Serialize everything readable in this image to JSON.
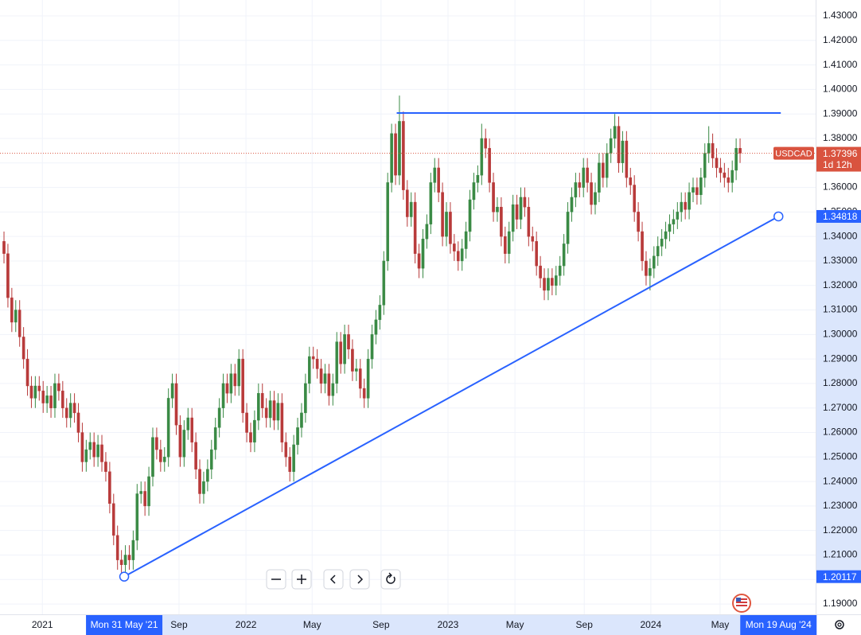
{
  "chart_data": {
    "type": "candlestick",
    "symbol": "USDCAD",
    "last_price": 1.37396,
    "countdown": "1d 12h",
    "series": [
      {
        "up_color": "#3a8a45",
        "down_color": "#b83a3a",
        "open": [
          1.338,
          1.333,
          1.315,
          1.305,
          1.31,
          1.299,
          1.29,
          1.279,
          1.274,
          1.279,
          1.277,
          1.272,
          1.275,
          1.27,
          1.28,
          1.277,
          1.27,
          1.266,
          1.272,
          1.268,
          1.26,
          1.248,
          1.253,
          1.256,
          1.25,
          1.255,
          1.248,
          1.244,
          1.231,
          1.218,
          1.208,
          1.206,
          1.21,
          1.208,
          1.216,
          1.235,
          1.236,
          1.23,
          1.242,
          1.258,
          1.253,
          1.248,
          1.25,
          1.274,
          1.28,
          1.263,
          1.25,
          1.261,
          1.266,
          1.256,
          1.245,
          1.235,
          1.24,
          1.245,
          1.253,
          1.262,
          1.27,
          1.28,
          1.276,
          1.284,
          1.279,
          1.29,
          1.268,
          1.26,
          1.256,
          1.265,
          1.276,
          1.27,
          1.266,
          1.273,
          1.265,
          1.272,
          1.256,
          1.25,
          1.244,
          1.255,
          1.262,
          1.268,
          1.28,
          1.291,
          1.29,
          1.286,
          1.28,
          1.284,
          1.275,
          1.28,
          1.297,
          1.288,
          1.3,
          1.294,
          1.285,
          1.286,
          1.278,
          1.274,
          1.29,
          1.3,
          1.306,
          1.312,
          1.33,
          1.362,
          1.382,
          1.365,
          1.387,
          1.359,
          1.348,
          1.354,
          1.333,
          1.327,
          1.339,
          1.345,
          1.362,
          1.368,
          1.358,
          1.34,
          1.35,
          1.337,
          1.334,
          1.33,
          1.335,
          1.342,
          1.355,
          1.362,
          1.365,
          1.38,
          1.376,
          1.362,
          1.35,
          1.352,
          1.34,
          1.333,
          1.342,
          1.353,
          1.347,
          1.356,
          1.352,
          1.34,
          1.338,
          1.328,
          1.323,
          1.318,
          1.323,
          1.32,
          1.324,
          1.328,
          1.337,
          1.35,
          1.356,
          1.362,
          1.36,
          1.368,
          1.362,
          1.353,
          1.358,
          1.37,
          1.364,
          1.374,
          1.38,
          1.385,
          1.37,
          1.379,
          1.364,
          1.361,
          1.35,
          1.342,
          1.33,
          1.324,
          1.327,
          1.332,
          1.336,
          1.339,
          1.342,
          1.345,
          1.347,
          1.35,
          1.354,
          1.351,
          1.358,
          1.36,
          1.357,
          1.364,
          1.374,
          1.378,
          1.372,
          1.368,
          1.366,
          1.364,
          1.362,
          1.367,
          1.376
        ],
        "high": [
          1.342,
          1.337,
          1.319,
          1.314,
          1.314,
          1.303,
          1.294,
          1.283,
          1.283,
          1.283,
          1.281,
          1.279,
          1.279,
          1.284,
          1.284,
          1.281,
          1.274,
          1.276,
          1.276,
          1.272,
          1.264,
          1.257,
          1.26,
          1.26,
          1.259,
          1.259,
          1.252,
          1.248,
          1.235,
          1.222,
          1.212,
          1.214,
          1.214,
          1.22,
          1.239,
          1.24,
          1.24,
          1.246,
          1.262,
          1.262,
          1.257,
          1.254,
          1.278,
          1.284,
          1.284,
          1.267,
          1.265,
          1.27,
          1.27,
          1.26,
          1.249,
          1.244,
          1.249,
          1.257,
          1.266,
          1.274,
          1.284,
          1.284,
          1.288,
          1.288,
          1.294,
          1.294,
          1.272,
          1.264,
          1.269,
          1.28,
          1.28,
          1.274,
          1.277,
          1.277,
          1.276,
          1.276,
          1.26,
          1.254,
          1.259,
          1.266,
          1.272,
          1.284,
          1.295,
          1.295,
          1.294,
          1.29,
          1.288,
          1.288,
          1.284,
          1.301,
          1.301,
          1.304,
          1.304,
          1.298,
          1.29,
          1.29,
          1.282,
          1.294,
          1.304,
          1.31,
          1.316,
          1.334,
          1.366,
          1.386,
          1.386,
          1.3975,
          1.391,
          1.363,
          1.358,
          1.358,
          1.337,
          1.343,
          1.349,
          1.366,
          1.372,
          1.372,
          1.362,
          1.354,
          1.354,
          1.341,
          1.338,
          1.339,
          1.346,
          1.359,
          1.366,
          1.369,
          1.386,
          1.384,
          1.38,
          1.366,
          1.356,
          1.356,
          1.344,
          1.346,
          1.357,
          1.357,
          1.36,
          1.36,
          1.356,
          1.344,
          1.342,
          1.332,
          1.327,
          1.327,
          1.327,
          1.328,
          1.332,
          1.341,
          1.354,
          1.36,
          1.366,
          1.366,
          1.372,
          1.372,
          1.366,
          1.362,
          1.374,
          1.374,
          1.378,
          1.384,
          1.39,
          1.389,
          1.383,
          1.383,
          1.368,
          1.365,
          1.354,
          1.346,
          1.334,
          1.331,
          1.336,
          1.34,
          1.343,
          1.346,
          1.349,
          1.351,
          1.354,
          1.358,
          1.358,
          1.362,
          1.364,
          1.364,
          1.368,
          1.378,
          1.385,
          1.382,
          1.376,
          1.372,
          1.37,
          1.368,
          1.371,
          1.38,
          1.38
        ],
        "low": [
          1.329,
          1.311,
          1.301,
          1.301,
          1.295,
          1.286,
          1.275,
          1.27,
          1.27,
          1.273,
          1.268,
          1.268,
          1.266,
          1.266,
          1.273,
          1.266,
          1.262,
          1.262,
          1.264,
          1.256,
          1.244,
          1.244,
          1.249,
          1.246,
          1.246,
          1.244,
          1.24,
          1.227,
          1.214,
          1.204,
          1.2012,
          1.202,
          1.204,
          1.204,
          1.212,
          1.231,
          1.226,
          1.226,
          1.238,
          1.249,
          1.244,
          1.244,
          1.246,
          1.27,
          1.259,
          1.246,
          1.246,
          1.257,
          1.252,
          1.241,
          1.231,
          1.231,
          1.236,
          1.241,
          1.249,
          1.258,
          1.266,
          1.272,
          1.272,
          1.275,
          1.275,
          1.264,
          1.256,
          1.252,
          1.252,
          1.261,
          1.266,
          1.262,
          1.262,
          1.261,
          1.261,
          1.252,
          1.246,
          1.24,
          1.24,
          1.251,
          1.258,
          1.264,
          1.276,
          1.286,
          1.282,
          1.276,
          1.276,
          1.271,
          1.271,
          1.276,
          1.284,
          1.284,
          1.29,
          1.281,
          1.281,
          1.274,
          1.27,
          1.27,
          1.286,
          1.296,
          1.302,
          1.308,
          1.326,
          1.358,
          1.361,
          1.361,
          1.355,
          1.344,
          1.344,
          1.329,
          1.323,
          1.323,
          1.335,
          1.341,
          1.358,
          1.354,
          1.336,
          1.336,
          1.333,
          1.33,
          1.326,
          1.326,
          1.331,
          1.338,
          1.351,
          1.358,
          1.361,
          1.372,
          1.358,
          1.346,
          1.346,
          1.336,
          1.329,
          1.329,
          1.338,
          1.343,
          1.343,
          1.348,
          1.336,
          1.334,
          1.324,
          1.319,
          1.314,
          1.314,
          1.316,
          1.316,
          1.32,
          1.324,
          1.333,
          1.346,
          1.352,
          1.356,
          1.356,
          1.358,
          1.349,
          1.349,
          1.354,
          1.36,
          1.36,
          1.37,
          1.376,
          1.366,
          1.366,
          1.36,
          1.357,
          1.346,
          1.338,
          1.326,
          1.32,
          1.318,
          1.323,
          1.328,
          1.332,
          1.335,
          1.338,
          1.341,
          1.343,
          1.346,
          1.347,
          1.347,
          1.354,
          1.353,
          1.353,
          1.36,
          1.37,
          1.368,
          1.364,
          1.362,
          1.36,
          1.358,
          1.358,
          1.363,
          1.37
        ],
        "close": [
          1.333,
          1.315,
          1.305,
          1.31,
          1.299,
          1.29,
          1.279,
          1.274,
          1.279,
          1.277,
          1.272,
          1.275,
          1.27,
          1.28,
          1.277,
          1.27,
          1.266,
          1.272,
          1.268,
          1.26,
          1.248,
          1.253,
          1.256,
          1.25,
          1.255,
          1.248,
          1.244,
          1.231,
          1.218,
          1.208,
          1.206,
          1.21,
          1.208,
          1.216,
          1.235,
          1.236,
          1.23,
          1.242,
          1.258,
          1.253,
          1.248,
          1.25,
          1.274,
          1.28,
          1.263,
          1.25,
          1.261,
          1.266,
          1.256,
          1.245,
          1.235,
          1.24,
          1.245,
          1.253,
          1.262,
          1.27,
          1.28,
          1.276,
          1.284,
          1.279,
          1.29,
          1.268,
          1.26,
          1.256,
          1.265,
          1.276,
          1.27,
          1.266,
          1.273,
          1.265,
          1.272,
          1.256,
          1.25,
          1.244,
          1.255,
          1.262,
          1.268,
          1.28,
          1.291,
          1.29,
          1.286,
          1.28,
          1.284,
          1.275,
          1.28,
          1.297,
          1.288,
          1.3,
          1.294,
          1.285,
          1.286,
          1.278,
          1.274,
          1.29,
          1.3,
          1.306,
          1.312,
          1.33,
          1.362,
          1.382,
          1.365,
          1.387,
          1.359,
          1.348,
          1.354,
          1.333,
          1.327,
          1.339,
          1.345,
          1.362,
          1.368,
          1.358,
          1.34,
          1.35,
          1.337,
          1.334,
          1.33,
          1.335,
          1.342,
          1.355,
          1.362,
          1.365,
          1.38,
          1.376,
          1.362,
          1.35,
          1.352,
          1.34,
          1.333,
          1.342,
          1.353,
          1.347,
          1.356,
          1.352,
          1.34,
          1.338,
          1.328,
          1.323,
          1.318,
          1.323,
          1.32,
          1.324,
          1.328,
          1.337,
          1.35,
          1.356,
          1.362,
          1.36,
          1.368,
          1.362,
          1.353,
          1.358,
          1.37,
          1.364,
          1.374,
          1.38,
          1.385,
          1.37,
          1.379,
          1.364,
          1.361,
          1.35,
          1.342,
          1.33,
          1.324,
          1.327,
          1.332,
          1.336,
          1.339,
          1.342,
          1.345,
          1.347,
          1.35,
          1.354,
          1.351,
          1.358,
          1.36,
          1.357,
          1.364,
          1.374,
          1.378,
          1.372,
          1.368,
          1.366,
          1.364,
          1.362,
          1.367,
          1.376,
          1.37396
        ]
      }
    ],
    "xlim": [
      -1.02,
      207.3
    ],
    "xticks": [
      {
        "value": 9.8,
        "label": "2021"
      },
      {
        "value": 44.7,
        "label": "Sep"
      },
      {
        "value": 61.8,
        "label": "2022"
      },
      {
        "value": 78.7,
        "label": "May"
      },
      {
        "value": 96.3,
        "label": "Sep"
      },
      {
        "value": 113.4,
        "label": "2023"
      },
      {
        "value": 130.5,
        "label": "May"
      },
      {
        "value": 148.2,
        "label": "Sep"
      },
      {
        "value": 165.2,
        "label": "2024"
      },
      {
        "value": 182.9,
        "label": "May"
      }
    ],
    "ylim": [
      1.1858,
      1.4365
    ],
    "yticks": [
      {
        "value": 1.19,
        "label": "1.19000"
      },
      {
        "value": 1.2,
        "label": "1.20000"
      },
      {
        "value": 1.21,
        "label": "1.21000"
      },
      {
        "value": 1.22,
        "label": "1.22000"
      },
      {
        "value": 1.23,
        "label": "1.23000"
      },
      {
        "value": 1.24,
        "label": "1.24000"
      },
      {
        "value": 1.25,
        "label": "1.25000"
      },
      {
        "value": 1.26,
        "label": "1.26000"
      },
      {
        "value": 1.27,
        "label": "1.27000"
      },
      {
        "value": 1.28,
        "label": "1.28000"
      },
      {
        "value": 1.29,
        "label": "1.29000"
      },
      {
        "value": 1.3,
        "label": "1.30000"
      },
      {
        "value": 1.31,
        "label": "1.31000"
      },
      {
        "value": 1.32,
        "label": "1.32000"
      },
      {
        "value": 1.33,
        "label": "1.33000"
      },
      {
        "value": 1.34,
        "label": "1.34000"
      },
      {
        "value": 1.35,
        "label": "1.35000"
      },
      {
        "value": 1.36,
        "label": "1.36000"
      },
      {
        "value": 1.37,
        "label": "1.37000"
      },
      {
        "value": 1.38,
        "label": "1.38000"
      },
      {
        "value": 1.39,
        "label": "1.39000"
      },
      {
        "value": 1.4,
        "label": "1.40000"
      },
      {
        "value": 1.41,
        "label": "1.41000"
      },
      {
        "value": 1.42,
        "label": "1.42000"
      },
      {
        "value": 1.43,
        "label": "1.43000"
      }
    ],
    "grid": true,
    "trendline": {
      "color": "#2962ff",
      "x": [
        30.7,
        197.8
      ],
      "y": [
        1.20117,
        1.34818
      ],
      "x_labels": [
        "Mon 31 May '21",
        "Mon 19 Aug '24"
      ]
    },
    "resistance": {
      "color": "#2962ff",
      "x": [
        100.3,
        198.4
      ],
      "level": 1.3904
    }
  }
}
